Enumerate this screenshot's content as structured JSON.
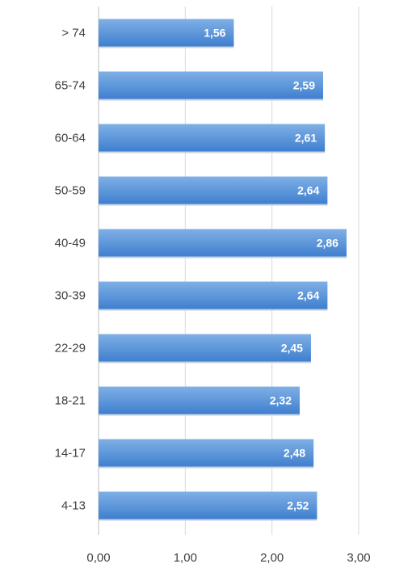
{
  "chart_data": {
    "type": "bar",
    "orientation": "horizontal",
    "categories": [
      "> 74",
      "65-74",
      "60-64",
      "50-59",
      "40-49",
      "30-39",
      "22-29",
      "18-21",
      "14-17",
      "4-13"
    ],
    "values": [
      1.56,
      2.59,
      2.61,
      2.64,
      2.86,
      2.64,
      2.45,
      2.32,
      2.48,
      2.52
    ],
    "value_labels": [
      "1,56",
      "2,59",
      "2,61",
      "2,64",
      "2,86",
      "2,64",
      "2,45",
      "2,32",
      "2,48",
      "2,52"
    ],
    "x_ticks": [
      0,
      1,
      2,
      3
    ],
    "x_tick_labels": [
      "0,00",
      "1,00",
      "2,00",
      "3,00"
    ],
    "xlim": [
      0,
      3
    ],
    "grid": "vertical",
    "legend": "none",
    "title": "",
    "xlabel": "",
    "ylabel": ""
  },
  "colors": {
    "bar_top": "#7fb0e6",
    "bar_bottom": "#3f7fcf",
    "gridline": "#d9d9d9",
    "axis": "#bfbfbf",
    "text": "#404040",
    "value_label": "#ffffff"
  }
}
